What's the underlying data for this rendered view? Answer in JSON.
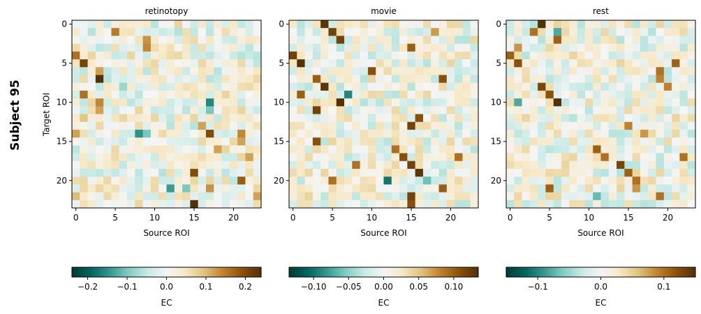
{
  "figure": {
    "subject_label": "Subject 95"
  },
  "chart_data": [
    {
      "type": "heatmap",
      "title": "retinotopy",
      "xlabel": "Source ROI",
      "ylabel": "Target ROI",
      "size": 24,
      "xticks": [
        0,
        5,
        10,
        15,
        20
      ],
      "yticks": [
        0,
        5,
        10,
        15,
        20
      ],
      "colorbar": {
        "label": "EC",
        "range": [
          -0.24,
          0.24
        ],
        "ticks": [
          -0.2,
          -0.1,
          0.0,
          0.1,
          0.2
        ],
        "tick_labels": [
          "−0.2",
          "−0.1",
          "0.0",
          "0.1",
          "0.2"
        ]
      },
      "highlights": [
        {
          "r": 1,
          "c": 5,
          "v": 0.15
        },
        {
          "r": 2,
          "c": 9,
          "v": 0.13
        },
        {
          "r": 3,
          "c": 9,
          "v": 0.14
        },
        {
          "r": 4,
          "c": 0,
          "v": 0.16
        },
        {
          "r": 5,
          "c": 1,
          "v": 0.21
        },
        {
          "r": 6,
          "c": 3,
          "v": 0.12
        },
        {
          "r": 7,
          "c": 3,
          "v": 0.24
        },
        {
          "r": 9,
          "c": 1,
          "v": 0.16
        },
        {
          "r": 10,
          "c": 3,
          "v": 0.14
        },
        {
          "r": 11,
          "c": 3,
          "v": 0.12
        },
        {
          "r": 10,
          "c": 17,
          "v": -0.16
        },
        {
          "r": 11,
          "c": 17,
          "v": -0.1
        },
        {
          "r": 13,
          "c": 16,
          "v": 0.12
        },
        {
          "r": 14,
          "c": 0,
          "v": 0.12
        },
        {
          "r": 14,
          "c": 8,
          "v": -0.15
        },
        {
          "r": 14,
          "c": 9,
          "v": -0.1
        },
        {
          "r": 14,
          "c": 17,
          "v": 0.2
        },
        {
          "r": 14,
          "c": 21,
          "v": 0.14
        },
        {
          "r": 15,
          "c": 21,
          "v": 0.12
        },
        {
          "r": 17,
          "c": 22,
          "v": 0.12
        },
        {
          "r": 19,
          "c": 15,
          "v": 0.2
        },
        {
          "r": 20,
          "c": 21,
          "v": 0.18
        },
        {
          "r": 21,
          "c": 12,
          "v": -0.14
        },
        {
          "r": 21,
          "c": 14,
          "v": -0.1
        },
        {
          "r": 21,
          "c": 17,
          "v": 0.13
        },
        {
          "r": 22,
          "c": 0,
          "v": 0.1
        },
        {
          "r": 22,
          "c": 23,
          "v": 0.12
        },
        {
          "r": 23,
          "c": 15,
          "v": 0.24
        },
        {
          "r": 16,
          "c": 18,
          "v": 0.12
        },
        {
          "r": 12,
          "c": 1,
          "v": 0.09
        },
        {
          "r": 1,
          "c": 13,
          "v": -0.06
        },
        {
          "r": 8,
          "c": 6,
          "v": -0.08
        }
      ]
    },
    {
      "type": "heatmap",
      "title": "movie",
      "xlabel": "Source ROI",
      "ylabel": "",
      "size": 24,
      "xticks": [
        0,
        5,
        10,
        15,
        20
      ],
      "yticks": [
        0,
        5,
        10,
        15,
        20
      ],
      "colorbar": {
        "label": "EC",
        "range": [
          -0.135,
          0.135
        ],
        "ticks": [
          -0.1,
          -0.05,
          0.0,
          0.05,
          0.1
        ],
        "tick_labels": [
          "−0.10",
          "−0.05",
          "0.00",
          "0.05",
          "0.10"
        ]
      },
      "highlights": [
        {
          "r": 0,
          "c": 4,
          "v": 0.13
        },
        {
          "r": 1,
          "c": 5,
          "v": 0.12
        },
        {
          "r": 2,
          "c": 6,
          "v": 0.12
        },
        {
          "r": 3,
          "c": 15,
          "v": 0.1
        },
        {
          "r": 4,
          "c": 0,
          "v": 0.12
        },
        {
          "r": 5,
          "c": 1,
          "v": 0.135
        },
        {
          "r": 6,
          "c": 10,
          "v": 0.11
        },
        {
          "r": 7,
          "c": 3,
          "v": 0.1
        },
        {
          "r": 7,
          "c": 19,
          "v": 0.11
        },
        {
          "r": 8,
          "c": 4,
          "v": 0.13
        },
        {
          "r": 9,
          "c": 7,
          "v": -0.09
        },
        {
          "r": 9,
          "c": 1,
          "v": 0.1
        },
        {
          "r": 10,
          "c": 6,
          "v": 0.135
        },
        {
          "r": 11,
          "c": 3,
          "v": 0.12
        },
        {
          "r": 12,
          "c": 16,
          "v": 0.11
        },
        {
          "r": 13,
          "c": 15,
          "v": 0.12
        },
        {
          "r": 15,
          "c": 3,
          "v": 0.11
        },
        {
          "r": 16,
          "c": 13,
          "v": 0.09
        },
        {
          "r": 17,
          "c": 14,
          "v": 0.11
        },
        {
          "r": 18,
          "c": 8,
          "v": 0.09
        },
        {
          "r": 18,
          "c": 15,
          "v": 0.12
        },
        {
          "r": 19,
          "c": 16,
          "v": 0.13
        },
        {
          "r": 20,
          "c": 12,
          "v": -0.1
        },
        {
          "r": 20,
          "c": 5,
          "v": 0.09
        },
        {
          "r": 20,
          "c": 17,
          "v": -0.06
        },
        {
          "r": 21,
          "c": 19,
          "v": 0.1
        },
        {
          "r": 22,
          "c": 15,
          "v": 0.12
        },
        {
          "r": 23,
          "c": 15,
          "v": 0.11
        },
        {
          "r": 17,
          "c": 21,
          "v": 0.09
        },
        {
          "r": 1,
          "c": 18,
          "v": 0.07
        }
      ]
    },
    {
      "type": "heatmap",
      "title": "rest",
      "xlabel": "Source ROI",
      "ylabel": "",
      "size": 24,
      "xticks": [
        0,
        5,
        10,
        15,
        20
      ],
      "yticks": [
        0,
        5,
        10,
        15,
        20
      ],
      "colorbar": {
        "label": "EC",
        "range": [
          -0.15,
          0.15
        ],
        "ticks": [
          -0.1,
          0.0,
          0.1
        ],
        "tick_labels": [
          "−0.1",
          "0.0",
          "0.1"
        ]
      },
      "highlights": [
        {
          "r": 0,
          "c": 4,
          "v": 0.15
        },
        {
          "r": 1,
          "c": 3,
          "v": 0.1
        },
        {
          "r": 1,
          "c": 6,
          "v": -0.08
        },
        {
          "r": 2,
          "c": 6,
          "v": 0.11
        },
        {
          "r": 3,
          "c": 1,
          "v": 0.08
        },
        {
          "r": 4,
          "c": 0,
          "v": 0.11
        },
        {
          "r": 5,
          "c": 1,
          "v": 0.12
        },
        {
          "r": 8,
          "c": 4,
          "v": 0.13
        },
        {
          "r": 9,
          "c": 5,
          "v": 0.12
        },
        {
          "r": 10,
          "c": 6,
          "v": 0.15
        },
        {
          "r": 10,
          "c": 1,
          "v": -0.08
        },
        {
          "r": 6,
          "c": 19,
          "v": 0.1
        },
        {
          "r": 5,
          "c": 21,
          "v": 0.11
        },
        {
          "r": 7,
          "c": 19,
          "v": 0.09
        },
        {
          "r": 8,
          "c": 20,
          "v": 0.09
        },
        {
          "r": 13,
          "c": 15,
          "v": 0.09
        },
        {
          "r": 14,
          "c": 17,
          "v": 0.08
        },
        {
          "r": 16,
          "c": 11,
          "v": 0.11
        },
        {
          "r": 17,
          "c": 12,
          "v": 0.1
        },
        {
          "r": 18,
          "c": 14,
          "v": 0.13
        },
        {
          "r": 19,
          "c": 15,
          "v": 0.11
        },
        {
          "r": 20,
          "c": 16,
          "v": 0.1
        },
        {
          "r": 21,
          "c": 5,
          "v": 0.11
        },
        {
          "r": 22,
          "c": 19,
          "v": 0.1
        },
        {
          "r": 17,
          "c": 22,
          "v": 0.1
        },
        {
          "r": 21,
          "c": 16,
          "v": 0.08
        },
        {
          "r": 22,
          "c": 11,
          "v": -0.07
        }
      ]
    }
  ]
}
